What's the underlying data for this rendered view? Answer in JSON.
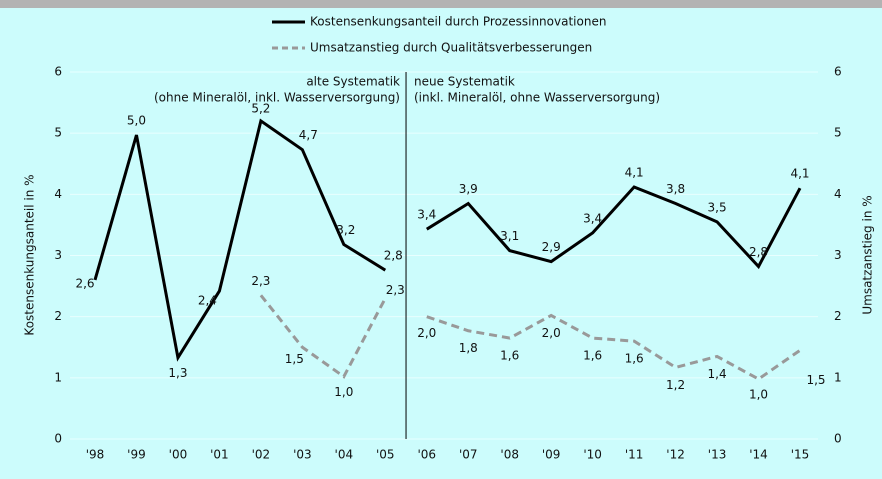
{
  "chart_data": {
    "type": "line",
    "y_label": "Kostensenkungsanteil in %",
    "y2_label": "Umsatzanstieg in %",
    "categories": [
      "'98",
      "'99",
      "'00",
      "'01",
      "'02",
      "'03",
      "'04",
      "'05",
      "'06",
      "'07",
      "'08",
      "'09",
      "'10",
      "'11",
      "'12",
      "'13",
      "'14",
      "'15"
    ],
    "series": [
      {
        "name": "Kostensenkungsanteil durch Prozessinnovationen",
        "color": "#000000",
        "dash": "solid",
        "values": [
          2.6,
          4.97,
          1.33,
          2.42,
          5.2,
          4.73,
          3.18,
          2.76,
          3.43,
          3.85,
          3.08,
          2.9,
          3.37,
          4.12,
          3.85,
          3.55,
          2.82,
          4.1
        ],
        "value_labels": [
          "2,6",
          "5,0",
          "1,3",
          "2,4",
          "5,2",
          "4,7",
          "3,2",
          "2,8",
          "3,4",
          "3,9",
          "3,1",
          "2,9",
          "3,4",
          "4,1",
          "3,8",
          "3,5",
          "2,8",
          "4,1"
        ]
      },
      {
        "name": "Umsatzanstieg durch Qualitätsverbesserungen",
        "color": "#999999",
        "dash": "dashed",
        "axis": "y2",
        "values": [
          null,
          null,
          null,
          null,
          2.35,
          1.5,
          1.02,
          2.3,
          2.0,
          1.77,
          1.65,
          2.02,
          1.65,
          1.6,
          1.17,
          1.35,
          0.98,
          1.45
        ],
        "value_labels": [
          null,
          null,
          null,
          null,
          "2,3",
          "1,5",
          "1,0",
          "2,3",
          "2,0",
          "1,8",
          "1,6",
          "2,0",
          "1,6",
          "1,6",
          "1,2",
          "1,4",
          "1,0",
          "1,5"
        ]
      }
    ],
    "ylim": [
      0,
      6
    ],
    "yticks": [
      0,
      1,
      2,
      3,
      4,
      5,
      6
    ],
    "y2lim": [
      0,
      6
    ],
    "y2ticks": [
      0,
      1,
      2,
      3,
      4,
      5,
      6
    ],
    "grid": true,
    "divider_after": "'05",
    "annotations": {
      "left": [
        "alte Systematik",
        "(ohne Mineralöl, inkl. Wasserversorgung)"
      ],
      "right": [
        "neue Systematik",
        "(inkl. Mineralöl, ohne Wasserversorgung)"
      ]
    }
  }
}
